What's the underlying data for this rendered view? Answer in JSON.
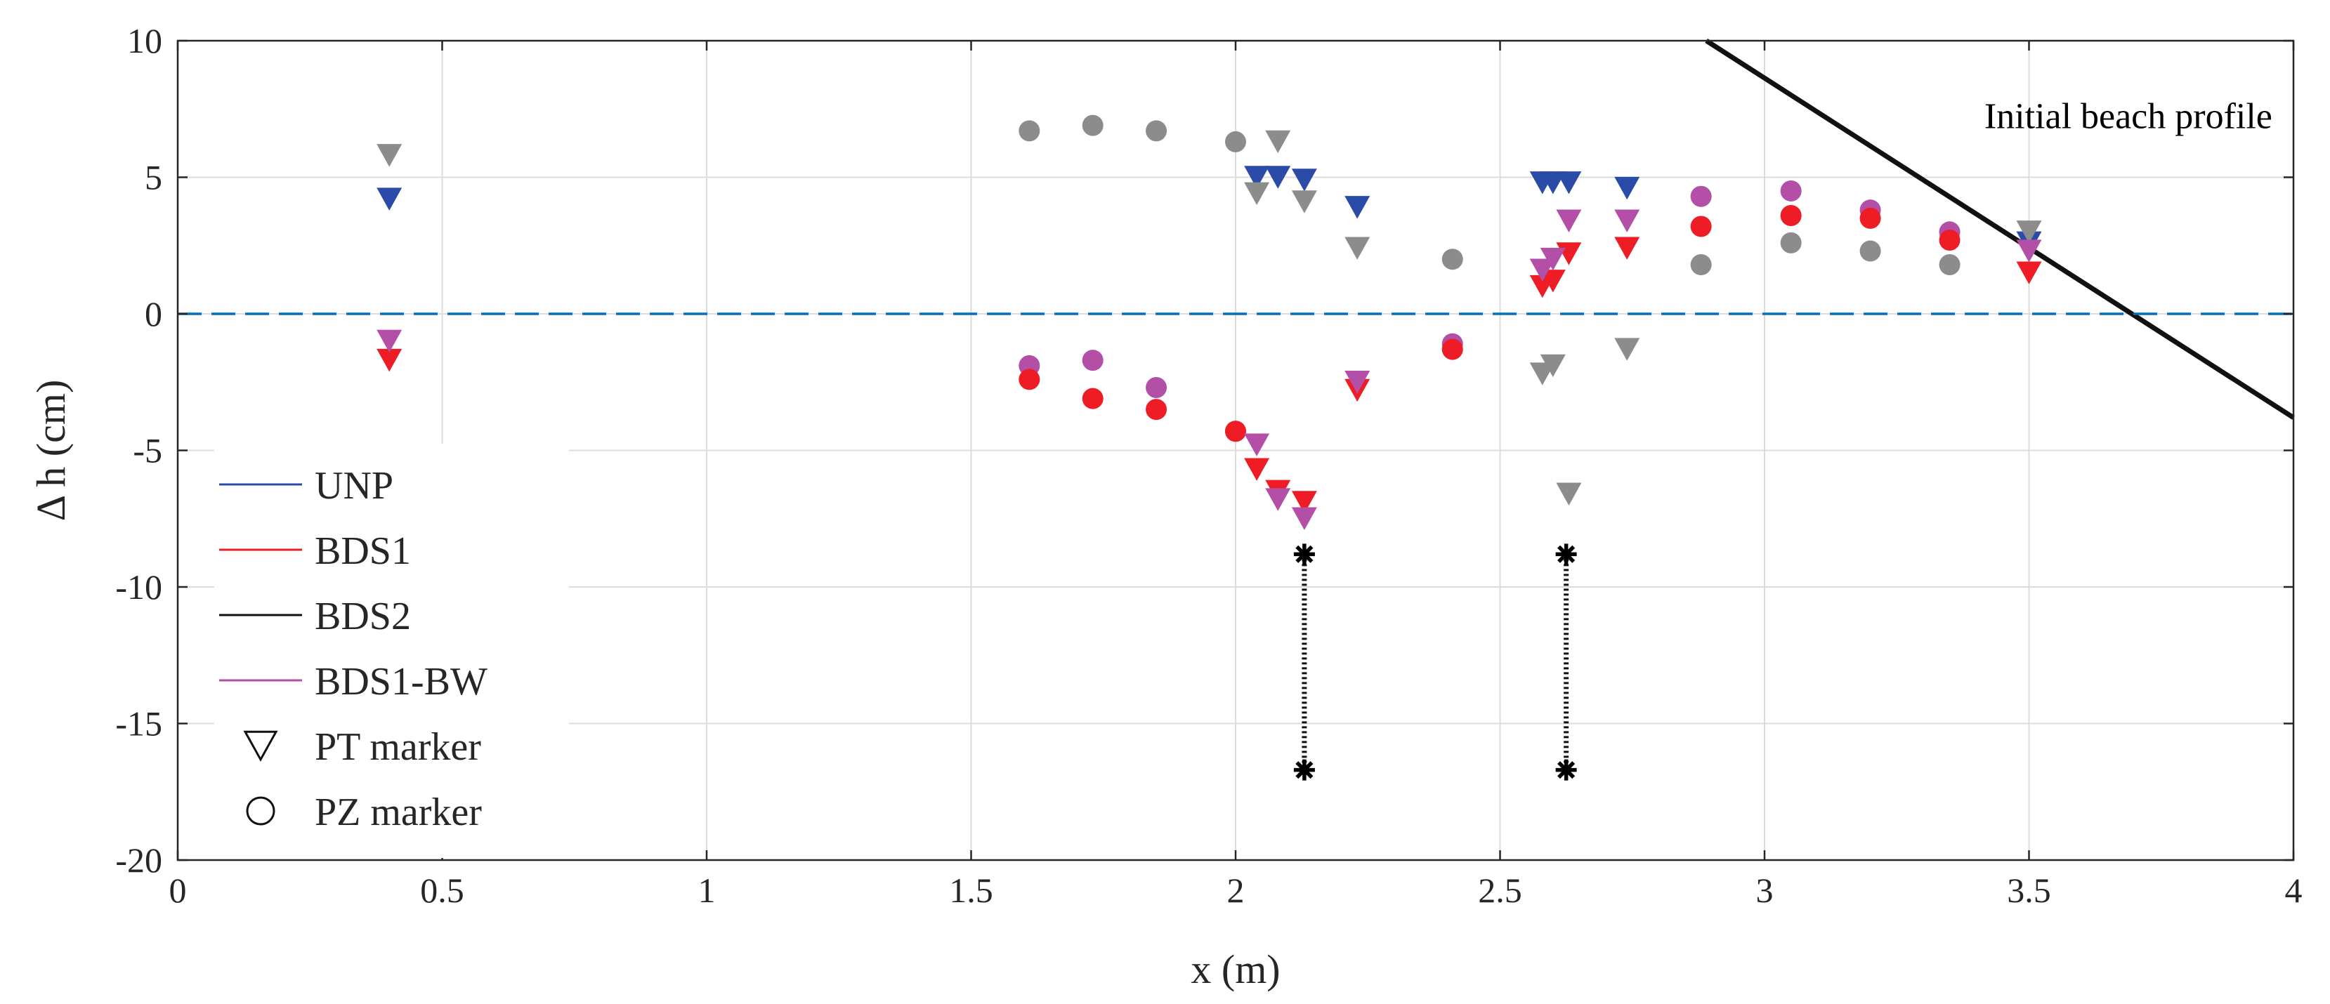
{
  "chart_data": {
    "type": "scatter",
    "title": "",
    "xlabel": "x (m)",
    "ylabel": "Δ h (cm)",
    "xlim": [
      0,
      4
    ],
    "ylim": [
      -20,
      10
    ],
    "xticks": [
      0,
      0.5,
      1,
      1.5,
      2,
      2.5,
      3,
      3.5,
      4
    ],
    "xtick_labels": [
      "0",
      "0.5",
      "1",
      "1.5",
      "2",
      "2.5",
      "3",
      "3.5",
      "4"
    ],
    "yticks": [
      10,
      5,
      0,
      -5,
      -10,
      -15,
      -20
    ],
    "ytick_labels": [
      "10",
      "5",
      "0",
      "-5",
      "-10",
      "-15",
      "-20"
    ],
    "grid": true,
    "legend_position": "bottom-left",
    "zero_line": {
      "y": 0,
      "style": "dashed",
      "color": "#0072bd"
    },
    "colors": {
      "UNP": "#2b4ba8",
      "BDS1": "#ee1c25",
      "BDS2": "#8c8c8c",
      "BDS1-BW": "#b44fa8",
      "profile": "#111111",
      "legend_UNP": "#2b4ba8",
      "legend_BDS1": "#ee1c25",
      "legend_BDS2": "#111111",
      "legend_BDS1-BW": "#b44fa8"
    },
    "legend": [
      {
        "label": "UNP",
        "kind": "line",
        "color_key": "legend_UNP"
      },
      {
        "label": "BDS1",
        "kind": "line",
        "color_key": "legend_BDS1"
      },
      {
        "label": "BDS2",
        "kind": "line",
        "color_key": "legend_BDS2"
      },
      {
        "label": "BDS1-BW",
        "kind": "line",
        "color_key": "legend_BDS1-BW"
      },
      {
        "label": "PT marker",
        "kind": "triangle"
      },
      {
        "label": "PZ marker",
        "kind": "circle"
      }
    ],
    "series": [
      {
        "name": "UNP",
        "marker": "PT",
        "x": [
          0.4,
          2.04,
          2.08,
          2.13,
          2.23,
          2.58,
          2.6,
          2.63,
          2.74,
          3.5
        ],
        "y": [
          4.2,
          5.0,
          5.0,
          4.9,
          3.9,
          4.8,
          4.8,
          4.8,
          4.6,
          2.6
        ]
      },
      {
        "name": "BDS2",
        "marker": "PZ",
        "x": [
          1.61,
          1.73,
          1.85,
          2.0,
          2.41,
          2.88,
          3.05,
          3.2,
          3.35
        ],
        "y": [
          6.7,
          6.9,
          6.7,
          6.3,
          2.0,
          1.8,
          2.6,
          2.3,
          1.8
        ]
      },
      {
        "name": "BDS2",
        "marker": "PT",
        "x": [
          0.4,
          2.04,
          2.08,
          2.13,
          2.23,
          2.58,
          2.6,
          2.63,
          2.74,
          3.5
        ],
        "y": [
          5.8,
          4.4,
          6.3,
          4.1,
          2.4,
          -2.2,
          -1.9,
          -6.6,
          -1.3,
          3.0
        ]
      },
      {
        "name": "BDS1-BW",
        "marker": "PZ",
        "x": [
          1.61,
          1.73,
          1.85,
          2.0,
          2.41,
          2.88,
          3.05,
          3.2,
          3.35
        ],
        "y": [
          -1.9,
          -1.7,
          -2.7,
          -4.3,
          -1.1,
          4.3,
          4.5,
          3.8,
          3.0
        ]
      },
      {
        "name": "BDS1",
        "marker": "PZ",
        "x": [
          1.61,
          1.73,
          1.85,
          2.0,
          2.41,
          2.88,
          3.05,
          3.2,
          3.35
        ],
        "y": [
          -2.4,
          -3.1,
          -3.5,
          -4.3,
          -1.3,
          3.2,
          3.6,
          3.5,
          2.7
        ]
      },
      {
        "name": "BDS1",
        "marker": "PT",
        "x": [
          0.4,
          2.04,
          2.08,
          2.13,
          2.23,
          2.58,
          2.6,
          2.63,
          2.74,
          3.5
        ],
        "y": [
          -1.7,
          -5.7,
          -6.5,
          -6.9,
          -2.8,
          1.0,
          1.2,
          2.2,
          2.4,
          1.5
        ]
      },
      {
        "name": "BDS1-BW",
        "marker": "PT",
        "x": [
          0.4,
          2.04,
          2.08,
          2.13,
          2.23,
          2.58,
          2.6,
          2.63,
          2.74,
          3.5
        ],
        "y": [
          -1.0,
          -4.8,
          -6.8,
          -7.5,
          -2.5,
          1.6,
          2.0,
          3.4,
          3.4,
          2.3
        ]
      }
    ],
    "profile_line": {
      "name": "Initial beach profile",
      "x": [
        2.89,
        4.0
      ],
      "y": [
        10.0,
        -3.8
      ]
    },
    "profile_label": "Initial beach profile",
    "profile_label_anchor": {
      "x": 3.96,
      "y": 6.8
    },
    "vertical_markers": [
      {
        "x": 2.13,
        "y_top": -8.8,
        "y_bottom": -16.7
      },
      {
        "x": 2.625,
        "y_top": -8.8,
        "y_bottom": -16.7
      }
    ]
  }
}
